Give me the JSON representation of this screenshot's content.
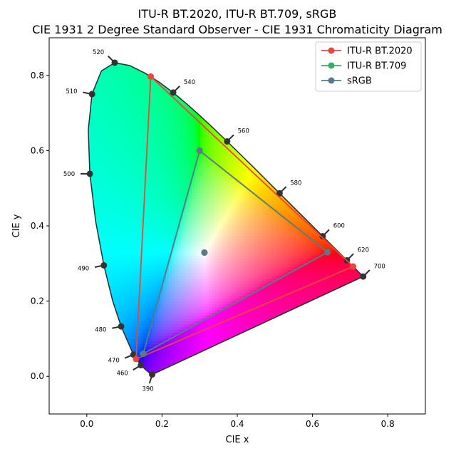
{
  "chart_data": {
    "type": "scatter",
    "title_line1": "ITU-R BT.2020, ITU-R BT.709, sRGB",
    "title_line2": "CIE 1931 2 Degree Standard Observer - CIE 1931 Chromaticity Diagram",
    "xlabel": "CIE x",
    "ylabel": "CIE y",
    "xlim": [
      -0.1,
      0.9
    ],
    "ylim": [
      -0.1,
      0.9
    ],
    "xticks": [
      0.0,
      0.2,
      0.4,
      0.6,
      0.8
    ],
    "xtick_labels": [
      "0.0",
      "0.2",
      "0.4",
      "0.6",
      "0.8"
    ],
    "yticks": [
      0.0,
      0.2,
      0.4,
      0.6,
      0.8
    ],
    "ytick_labels": [
      "0.0",
      "0.2",
      "0.4",
      "0.6",
      "0.8"
    ],
    "legend_position": "top-right",
    "spectral_locus": [
      [
        0.1741,
        0.005
      ],
      [
        0.174,
        0.005
      ],
      [
        0.1738,
        0.0049
      ],
      [
        0.1733,
        0.0048
      ],
      [
        0.1726,
        0.0048
      ],
      [
        0.1714,
        0.0051
      ],
      [
        0.1689,
        0.0069
      ],
      [
        0.1644,
        0.0109
      ],
      [
        0.1566,
        0.0177
      ],
      [
        0.144,
        0.0297
      ],
      [
        0.1241,
        0.0578
      ],
      [
        0.0913,
        0.1327
      ],
      [
        0.0687,
        0.2007
      ],
      [
        0.0454,
        0.295
      ],
      [
        0.0235,
        0.4127
      ],
      [
        0.0082,
        0.5384
      ],
      [
        0.0039,
        0.6548
      ],
      [
        0.0139,
        0.7502
      ],
      [
        0.0389,
        0.812
      ],
      [
        0.0743,
        0.8338
      ],
      [
        0.1142,
        0.8262
      ],
      [
        0.1547,
        0.8059
      ],
      [
        0.1929,
        0.7816
      ],
      [
        0.2296,
        0.7543
      ],
      [
        0.2658,
        0.7243
      ],
      [
        0.3016,
        0.6923
      ],
      [
        0.3373,
        0.6589
      ],
      [
        0.3731,
        0.6245
      ],
      [
        0.4087,
        0.5896
      ],
      [
        0.4441,
        0.5547
      ],
      [
        0.4788,
        0.5202
      ],
      [
        0.5125,
        0.4866
      ],
      [
        0.5448,
        0.4544
      ],
      [
        0.5752,
        0.4242
      ],
      [
        0.6029,
        0.3965
      ],
      [
        0.627,
        0.3725
      ],
      [
        0.6482,
        0.3514
      ],
      [
        0.6658,
        0.334
      ],
      [
        0.6801,
        0.3197
      ],
      [
        0.6915,
        0.3083
      ],
      [
        0.7006,
        0.2993
      ],
      [
        0.7079,
        0.292
      ],
      [
        0.714,
        0.2859
      ],
      [
        0.719,
        0.2809
      ],
      [
        0.723,
        0.277
      ],
      [
        0.726,
        0.274
      ],
      [
        0.7283,
        0.2717
      ],
      [
        0.73,
        0.27
      ],
      [
        0.7311,
        0.2689
      ],
      [
        0.732,
        0.268
      ],
      [
        0.7327,
        0.2673
      ],
      [
        0.7334,
        0.2666
      ],
      [
        0.734,
        0.266
      ],
      [
        0.7344,
        0.2656
      ],
      [
        0.7346,
        0.2654
      ],
      [
        0.7347,
        0.2653
      ]
    ],
    "wavelength_markers": [
      {
        "label": "390",
        "x": 0.1738,
        "y": 0.0049,
        "dir": [
          -0.3,
          -1.0
        ]
      },
      {
        "label": "460",
        "x": 0.144,
        "y": 0.0297,
        "dir": [
          -1.0,
          -0.6
        ]
      },
      {
        "label": "470",
        "x": 0.1241,
        "y": 0.0578,
        "dir": [
          -1.0,
          -0.4
        ]
      },
      {
        "label": "480",
        "x": 0.0913,
        "y": 0.1327,
        "dir": [
          -1.0,
          -0.2
        ]
      },
      {
        "label": "490",
        "x": 0.0454,
        "y": 0.295,
        "dir": [
          -1.0,
          -0.2
        ]
      },
      {
        "label": "500",
        "x": 0.0082,
        "y": 0.5384,
        "dir": [
          -1.0,
          0.0
        ]
      },
      {
        "label": "510",
        "x": 0.0139,
        "y": 0.7502,
        "dir": [
          -1.0,
          0.2
        ]
      },
      {
        "label": "520",
        "x": 0.0743,
        "y": 0.8338,
        "dir": [
          -0.7,
          0.7
        ]
      },
      {
        "label": "540",
        "x": 0.2296,
        "y": 0.7543,
        "dir": [
          0.7,
          0.7
        ]
      },
      {
        "label": "560",
        "x": 0.3731,
        "y": 0.6245,
        "dir": [
          0.7,
          0.7
        ]
      },
      {
        "label": "580",
        "x": 0.5125,
        "y": 0.4866,
        "dir": [
          0.7,
          0.7
        ]
      },
      {
        "label": "600",
        "x": 0.627,
        "y": 0.3725,
        "dir": [
          0.7,
          0.7
        ]
      },
      {
        "label": "620",
        "x": 0.6915,
        "y": 0.3083,
        "dir": [
          0.7,
          0.7
        ]
      },
      {
        "label": "700",
        "x": 0.7347,
        "y": 0.2653,
        "dir": [
          0.7,
          0.7
        ]
      }
    ],
    "series": [
      {
        "name": "ITU-R BT.2020",
        "color": "#e8473a",
        "points": [
          [
            0.708,
            0.292
          ],
          [
            0.17,
            0.797
          ],
          [
            0.131,
            0.046
          ]
        ],
        "whitepoint": [
          0.3127,
          0.329
        ]
      },
      {
        "name": "ITU-R BT.709",
        "color": "#3aaa6a",
        "points": [
          [
            0.64,
            0.33
          ],
          [
            0.3,
            0.6
          ],
          [
            0.15,
            0.06
          ]
        ],
        "whitepoint": [
          0.3127,
          0.329
        ]
      },
      {
        "name": "sRGB",
        "color": "#5a7a8a",
        "points": [
          [
            0.64,
            0.33
          ],
          [
            0.3,
            0.6
          ],
          [
            0.15,
            0.06
          ]
        ],
        "whitepoint": [
          0.3127,
          0.329
        ]
      }
    ]
  }
}
